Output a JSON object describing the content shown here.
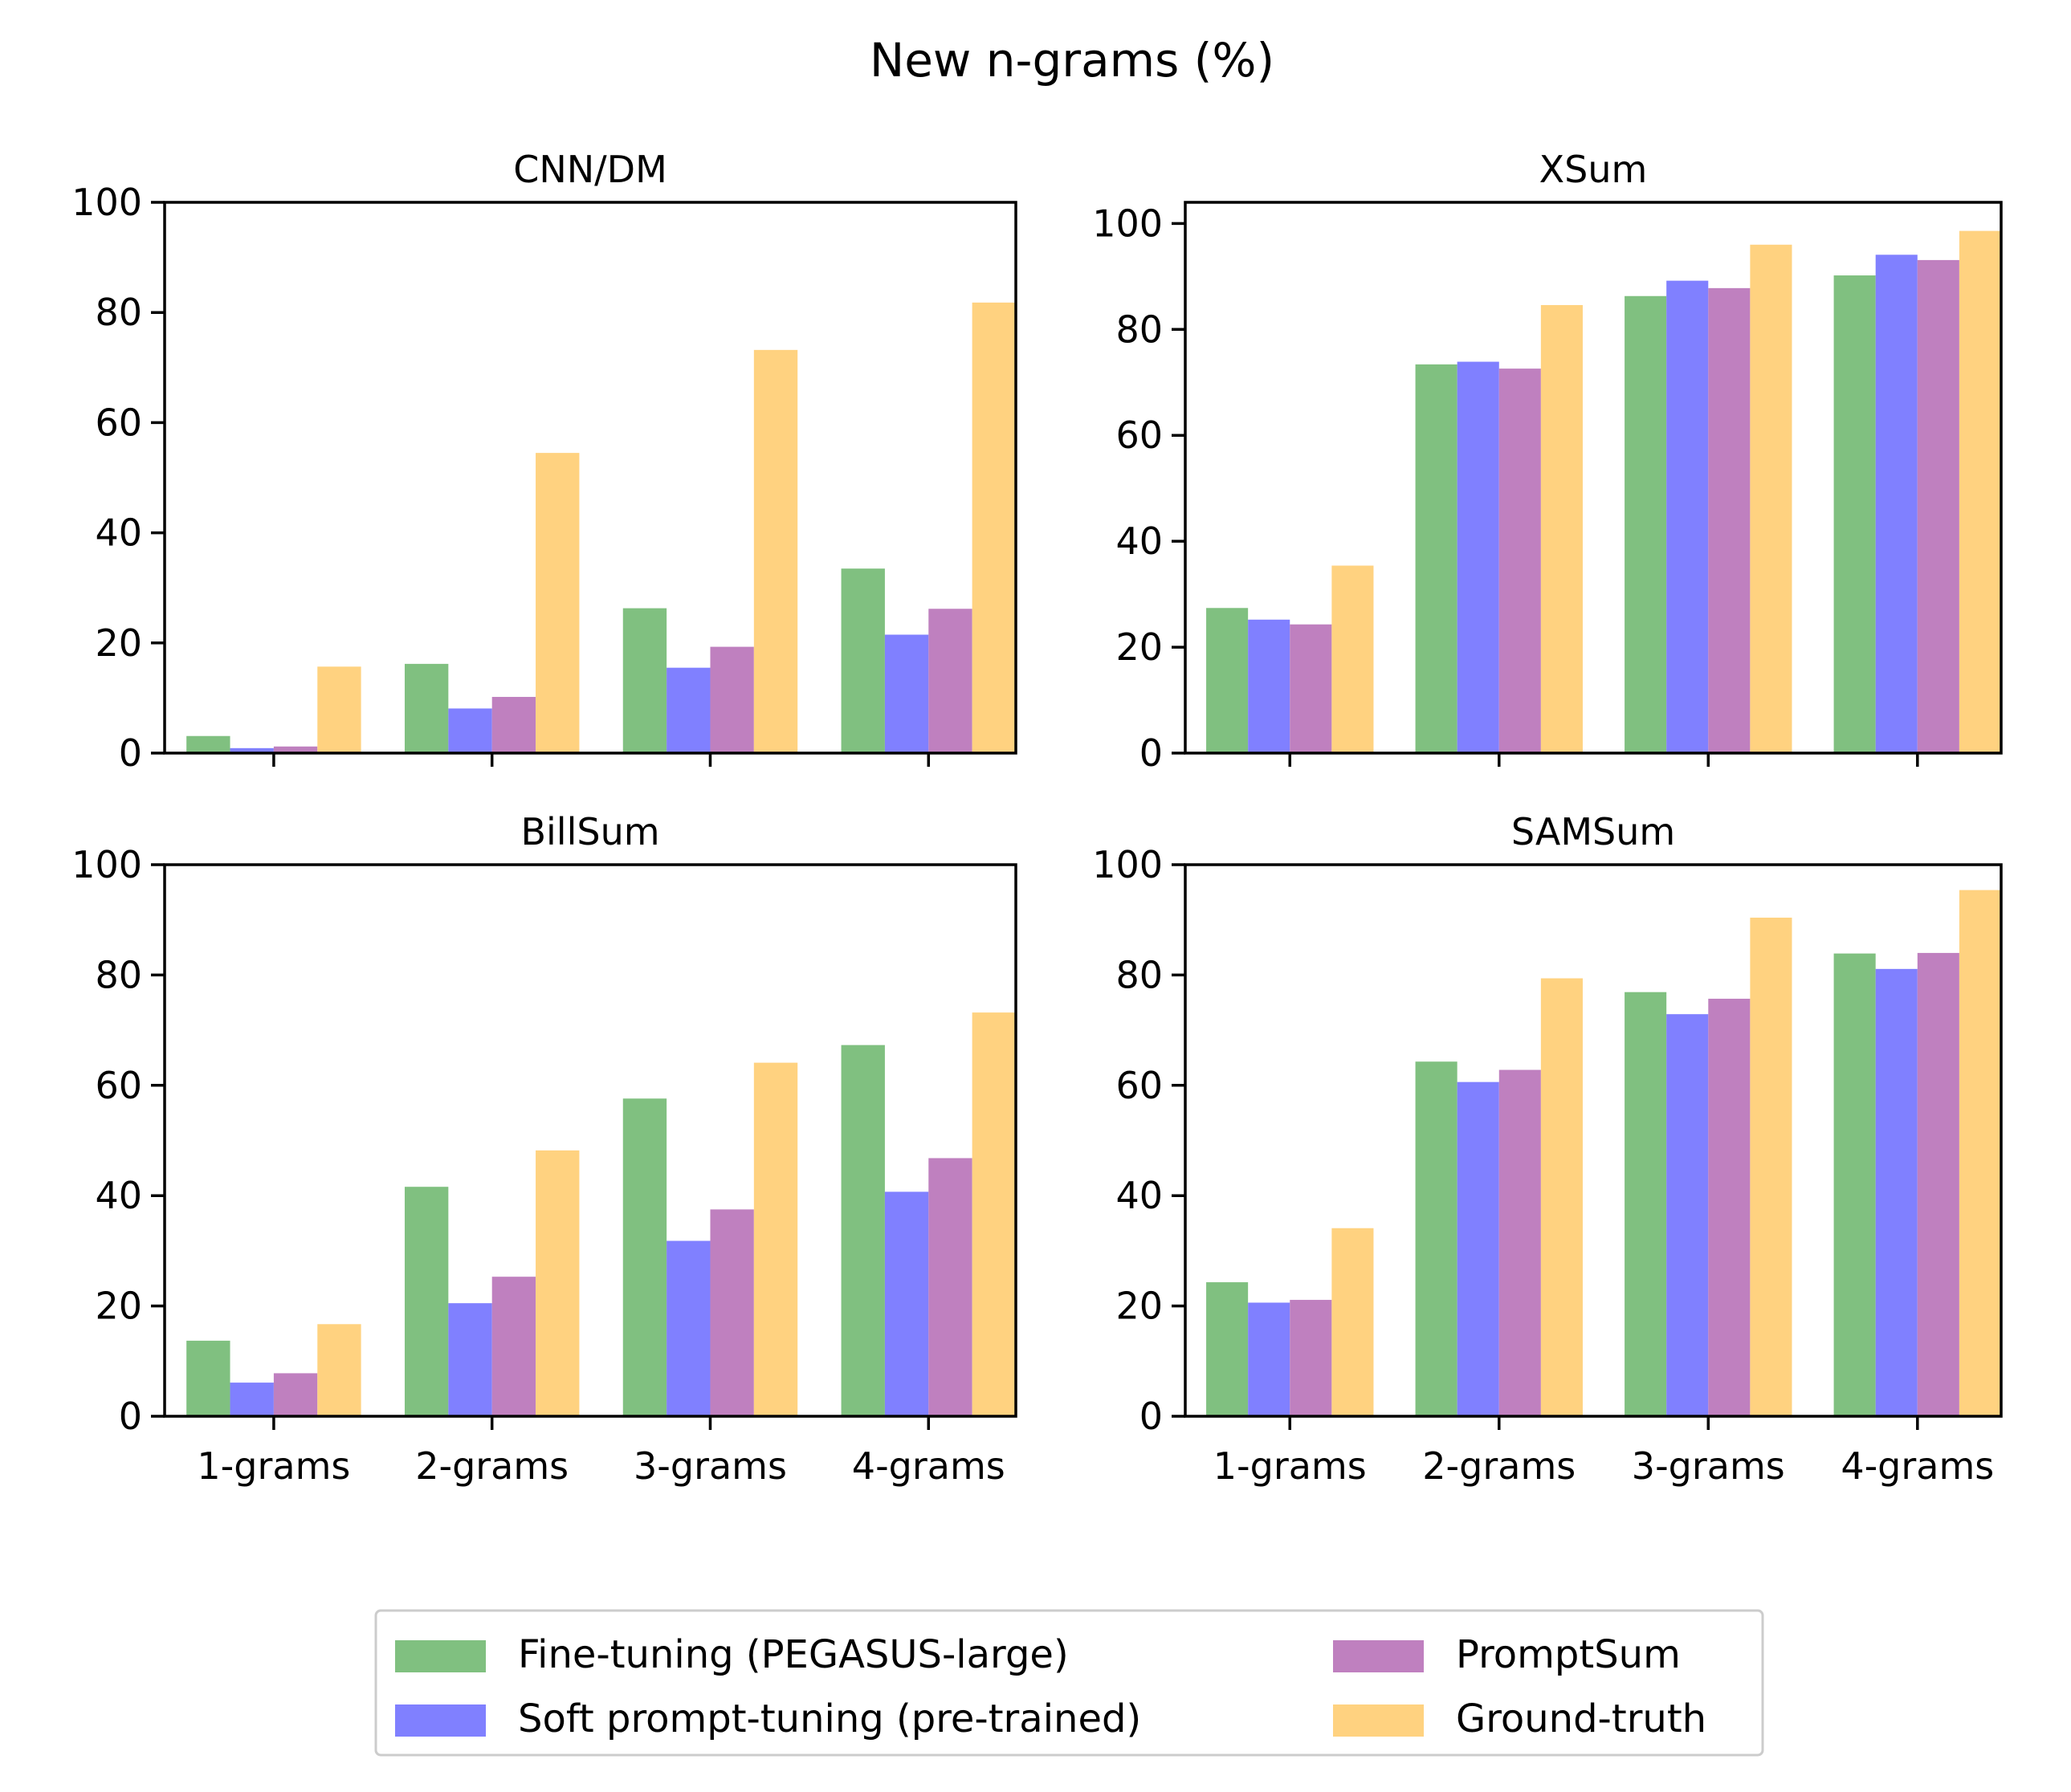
{
  "figure": {
    "title": "New n-grams (%)",
    "legend": [
      {
        "label": "Fine-tuning (PEGASUS-large)",
        "color": "#80c080"
      },
      {
        "label": "Soft prompt-tuning (pre-trained)",
        "color": "#8080ff"
      },
      {
        "label": "PromptSum",
        "color": "#bf80bf"
      },
      {
        "label": "Ground-truth",
        "color": "#ffd280"
      }
    ]
  },
  "chart_data": [
    {
      "type": "bar",
      "title": "CNN/DM",
      "categories": [
        "1-grams",
        "2-grams",
        "3-grams",
        "4-grams"
      ],
      "ylim": [
        0,
        100
      ],
      "yticks": [
        0,
        20,
        40,
        60,
        80,
        100
      ],
      "show_xticklabels": false,
      "series": [
        {
          "name": "Fine-tuning (PEGASUS-large)",
          "values": [
            3.1,
            16.2,
            26.3,
            33.5
          ]
        },
        {
          "name": "Soft prompt-tuning (pre-trained)",
          "values": [
            0.9,
            8.1,
            15.5,
            21.5
          ]
        },
        {
          "name": "PromptSum",
          "values": [
            1.2,
            10.2,
            19.3,
            26.2
          ]
        },
        {
          "name": "Ground-truth",
          "values": [
            15.7,
            54.5,
            73.2,
            81.8
          ]
        }
      ]
    },
    {
      "type": "bar",
      "title": "XSum",
      "categories": [
        "1-grams",
        "2-grams",
        "3-grams",
        "4-grams"
      ],
      "ylim": [
        0,
        104
      ],
      "yticks": [
        0,
        20,
        40,
        60,
        80,
        100
      ],
      "show_xticklabels": false,
      "series": [
        {
          "name": "Fine-tuning (PEGASUS-large)",
          "values": [
            27.4,
            73.4,
            86.3,
            90.2
          ]
        },
        {
          "name": "Soft prompt-tuning (pre-trained)",
          "values": [
            25.2,
            73.9,
            89.2,
            94.1
          ]
        },
        {
          "name": "PromptSum",
          "values": [
            24.3,
            72.6,
            87.8,
            93.1
          ]
        },
        {
          "name": "Ground-truth",
          "values": [
            35.4,
            84.6,
            96.0,
            98.6
          ]
        }
      ]
    },
    {
      "type": "bar",
      "title": "BillSum",
      "categories": [
        "1-grams",
        "2-grams",
        "3-grams",
        "4-grams"
      ],
      "ylim": [
        0,
        100
      ],
      "yticks": [
        0,
        20,
        40,
        60,
        80,
        100
      ],
      "show_xticklabels": true,
      "series": [
        {
          "name": "Fine-tuning (PEGASUS-large)",
          "values": [
            13.7,
            41.6,
            57.6,
            67.3
          ]
        },
        {
          "name": "Soft prompt-tuning (pre-trained)",
          "values": [
            6.1,
            20.5,
            31.8,
            40.7
          ]
        },
        {
          "name": "PromptSum",
          "values": [
            7.8,
            25.3,
            37.5,
            46.8
          ]
        },
        {
          "name": "Ground-truth",
          "values": [
            16.7,
            48.2,
            64.1,
            73.2
          ]
        }
      ]
    },
    {
      "type": "bar",
      "title": "SAMSum",
      "categories": [
        "1-grams",
        "2-grams",
        "3-grams",
        "4-grams"
      ],
      "ylim": [
        0,
        100
      ],
      "yticks": [
        0,
        20,
        40,
        60,
        80,
        100
      ],
      "show_xticklabels": true,
      "series": [
        {
          "name": "Fine-tuning (PEGASUS-large)",
          "values": [
            24.3,
            64.3,
            76.9,
            83.9
          ]
        },
        {
          "name": "Soft prompt-tuning (pre-trained)",
          "values": [
            20.6,
            60.6,
            72.9,
            81.1
          ]
        },
        {
          "name": "PromptSum",
          "values": [
            21.1,
            62.8,
            75.7,
            84.0
          ]
        },
        {
          "name": "Ground-truth",
          "values": [
            34.1,
            79.4,
            90.4,
            95.4
          ]
        }
      ]
    }
  ]
}
